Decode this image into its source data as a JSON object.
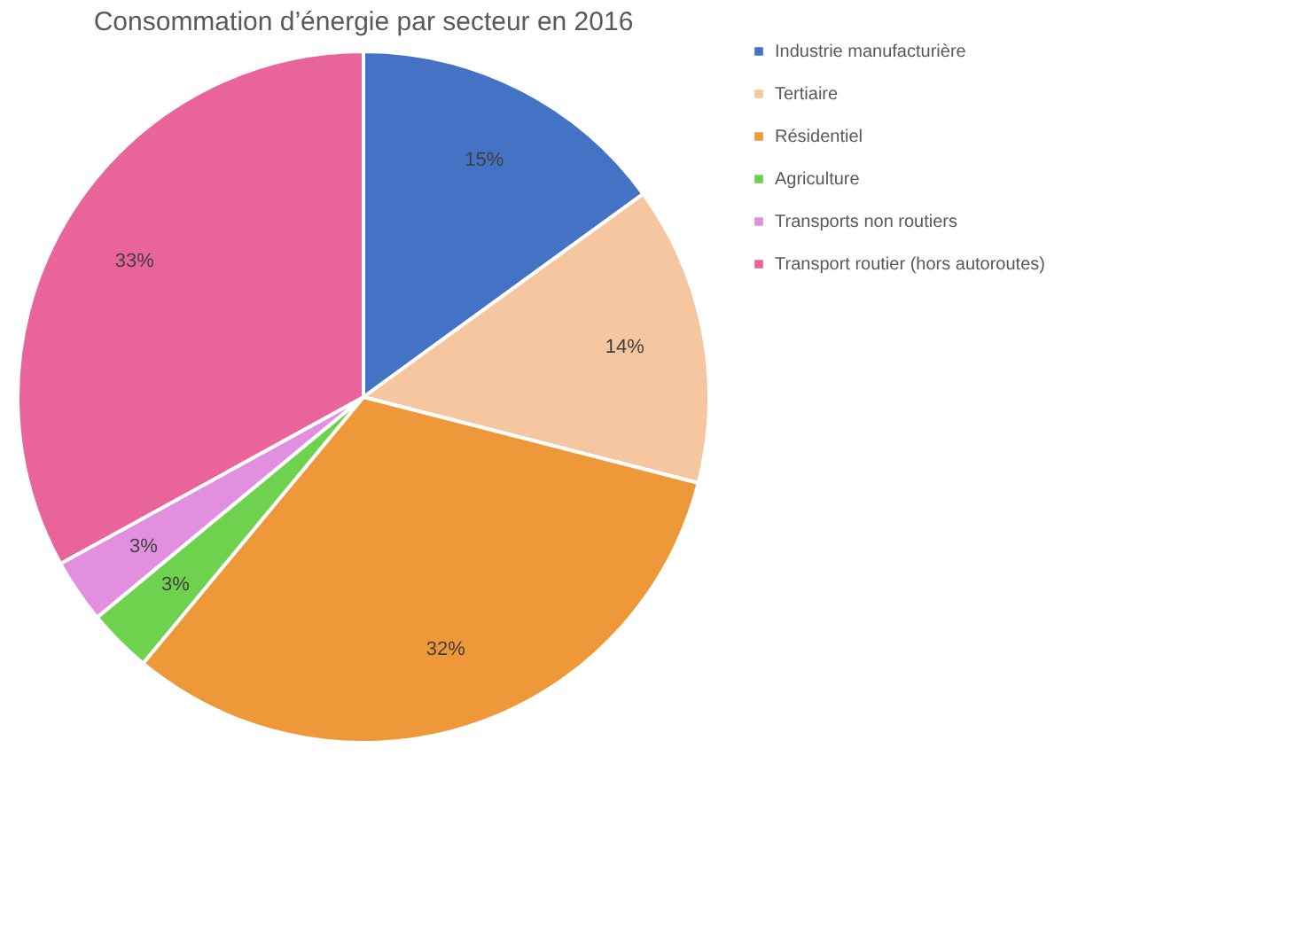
{
  "chart_data": {
    "type": "pie",
    "title": "Consommation d’énergie par secteur en 2016",
    "categories": [
      "Industrie manufacturière",
      "Tertiaire",
      "Résidentiel",
      "Agriculture",
      "Transports non routiers",
      "Transport routier (hors autoroutes)"
    ],
    "values": [
      15,
      14,
      32,
      3,
      3,
      33
    ],
    "colors": [
      "#4472c4",
      "#f5c6a0",
      "#ef983a",
      "#6fd24e",
      "#e28fe0",
      "#e8649a"
    ],
    "value_labels": [
      "15%",
      "14%",
      "32%",
      "3%",
      "3%",
      "33%"
    ],
    "legend": "right"
  }
}
